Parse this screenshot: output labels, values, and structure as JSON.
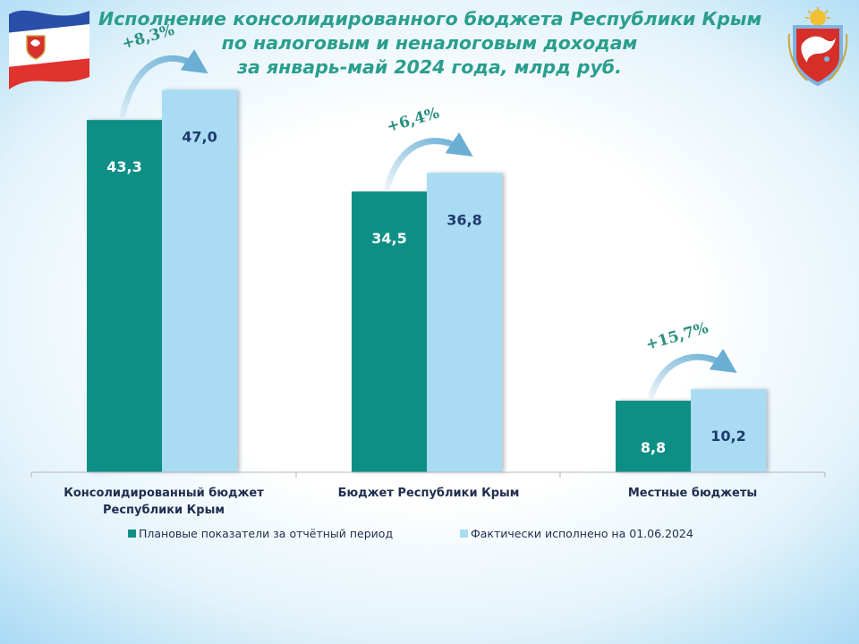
{
  "header": {
    "title_lines": [
      "Исполнение консолидированного бюджета Республики Крым",
      "по налоговым и неналоговым доходам",
      "за январь-май 2024 года, млрд руб."
    ]
  },
  "images": {
    "flag": "crimea-flag-icon",
    "coat_of_arms": "crimea-coat-of-arms-icon"
  },
  "colors": {
    "plan": "#0f8f86",
    "fact": "#a9dcf3",
    "plan_label": "#ffffff",
    "fact_label": "#203a6e",
    "growth": "#2a8f7f",
    "arrow": "#6aaed4"
  },
  "chart_data": {
    "type": "bar",
    "title": "Исполнение консолидированного бюджета Республики Крым по налоговым и неналоговым доходам за январь-май 2024 года, млрд руб.",
    "categories": [
      [
        "Консолидированный бюджет",
        "Республики Крым"
      ],
      [
        "Бюджет Республики Крым"
      ],
      [
        "Местные бюджеты"
      ]
    ],
    "series": [
      {
        "name": "Плановые показатели за отчётный период",
        "values": [
          43.3,
          34.5,
          8.8
        ],
        "labels": [
          "43,3",
          "34,5",
          "8,8"
        ]
      },
      {
        "name": "Фактически исполнено на 01.06.2024",
        "values": [
          47.0,
          36.8,
          10.2
        ],
        "labels": [
          "47,0",
          "36,8",
          "10,2"
        ]
      }
    ],
    "growth_labels": [
      "+8,3%",
      "+6,4%",
      "+15,7%"
    ],
    "ylim": [
      0,
      52
    ],
    "grid": false,
    "legend_position": "bottom"
  }
}
